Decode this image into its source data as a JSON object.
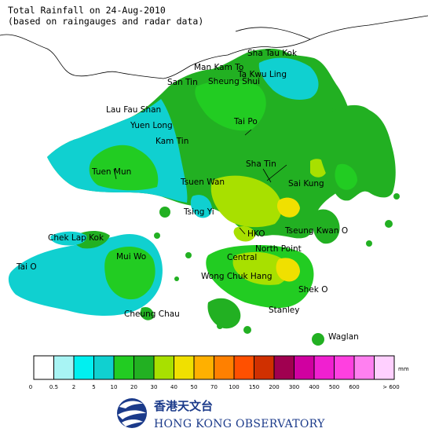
{
  "title": {
    "line1": "Total Rainfall on 24-Aug-2010",
    "line2": "(based on raingauges and radar data)"
  },
  "places": [
    {
      "name": "Sha Tau Kok"
    },
    {
      "name": "Man Kam To"
    },
    {
      "name": "Ta Kwu Ling"
    },
    {
      "name": "San Tin"
    },
    {
      "name": "Sheung Shui"
    },
    {
      "name": "Lau Fau Shan"
    },
    {
      "name": "Yuen Long"
    },
    {
      "name": "Tai Po"
    },
    {
      "name": "Kam Tin"
    },
    {
      "name": "Sha Tin"
    },
    {
      "name": "Tuen Mun"
    },
    {
      "name": "Tsuen Wan"
    },
    {
      "name": "Sai Kung"
    },
    {
      "name": "Tsing Yi"
    },
    {
      "name": "Chek Lap Kok"
    },
    {
      "name": "HKO"
    },
    {
      "name": "Tseung Kwan O"
    },
    {
      "name": "Mui Wo"
    },
    {
      "name": "North Point"
    },
    {
      "name": "Central"
    },
    {
      "name": "Tai O"
    },
    {
      "name": "Wong Chuk Hang"
    },
    {
      "name": "Shek O"
    },
    {
      "name": "Cheung Chau"
    },
    {
      "name": "Stanley"
    },
    {
      "name": "Waglan"
    }
  ],
  "legend": {
    "unit": "mm",
    "colors": [
      "#ffffff",
      "#a8f4f4",
      "#00f0f0",
      "#10d0d0",
      "#22cc22",
      "#22b022",
      "#a8e000",
      "#f0e000",
      "#ffb000",
      "#ff8000",
      "#ff5000",
      "#d03000",
      "#a00050",
      "#d000a0",
      "#f020d0",
      "#ff40e0",
      "#ff80f0",
      "#ffd0ff"
    ],
    "ticks": [
      "0",
      "0.5",
      "2",
      "5",
      "10",
      "20",
      "30",
      "40",
      "50",
      "70",
      "100",
      "150",
      "200",
      "300",
      "400",
      "500",
      "600",
      "> 600"
    ]
  },
  "logo": {
    "chinese": "香港天文台",
    "english": "HONG KONG OBSERVATORY"
  }
}
